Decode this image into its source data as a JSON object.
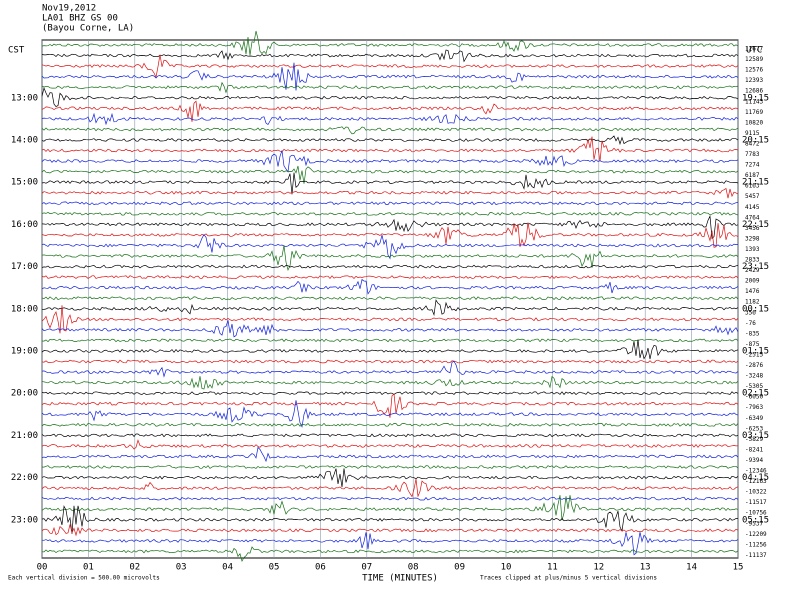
{
  "header": {
    "date": "Nov19,2012",
    "station": "LA01 BHZ GS 00",
    "location": "(Bayou Corne, LA)"
  },
  "left_axis": {
    "title": "CST",
    "labels": [
      "13:00",
      "14:00",
      "15:00",
      "16:00",
      "17:00",
      "18:00",
      "19:00",
      "20:00",
      "21:00",
      "22:00",
      "23:00"
    ]
  },
  "right_axis": {
    "title": "UTC",
    "labels": [
      "19:15",
      "20:15",
      "21:15",
      "22:15",
      "23:15",
      "00:15",
      "01:15",
      "02:15",
      "03:15",
      "04:15",
      "05:15"
    ]
  },
  "trace_offsets": [
    12677,
    12589,
    12576,
    12393,
    12686,
    11143,
    11769,
    10820,
    9115,
    8472,
    7783,
    7274,
    6187,
    6163,
    5457,
    4145,
    4764,
    3456,
    3298,
    1393,
    2833,
    2429,
    2009,
    1476,
    1182,
    356,
    -76,
    -835,
    -875,
    -2515,
    -2876,
    -3248,
    -5305,
    -6050,
    -7963,
    -6349,
    -6253,
    -5829,
    -8241,
    -9394,
    -12346,
    -12163,
    -10322,
    -11517,
    -10756,
    -9537,
    -12209,
    -11256,
    -11137
  ],
  "x_axis": {
    "title": "TIME (MINUTES)",
    "ticks": [
      "00",
      "01",
      "02",
      "03",
      "04",
      "05",
      "06",
      "07",
      "08",
      "09",
      "10",
      "11",
      "12",
      "13",
      "14",
      "15"
    ]
  },
  "footer": {
    "left": "Each vertical division = 500.00 microvolts",
    "right": "Traces clipped at plus/minus 5 vertical divisions"
  },
  "trace_colors": [
    "#157015",
    "#000000",
    "#e01010",
    "#1020e0"
  ]
}
